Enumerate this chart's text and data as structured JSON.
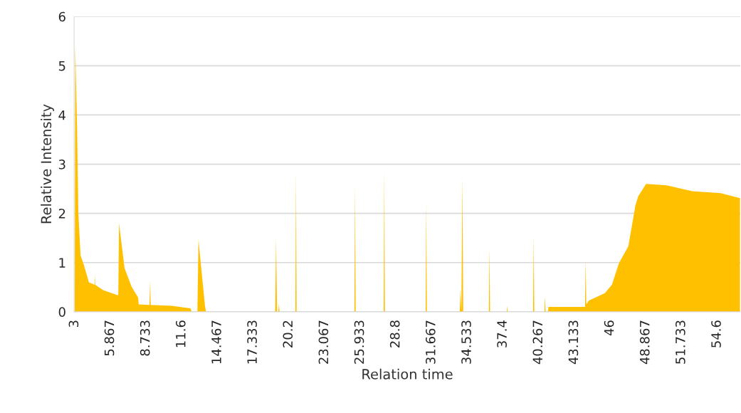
{
  "chart_data": {
    "type": "area",
    "xlabel": "Relation time",
    "ylabel": "Relative Intensity",
    "series": [
      {
        "color": "#ffc000",
        "x": [
          3.0,
          3.04,
          3.19,
          3.29,
          3.47,
          3.74,
          4.14,
          4.6,
          4.62,
          4.65,
          5.29,
          6.43,
          6.5,
          6.56,
          7.0,
          7.57,
          8.09,
          8.14,
          9.0,
          9.06,
          9.1,
          10.83,
          12.3,
          12.4,
          12.85,
          12.94,
          13.0,
          13.46,
          13.55,
          19.1,
          19.17,
          19.25,
          19.35,
          19.4,
          19.45,
          20.72,
          20.77,
          20.82,
          25.46,
          25.51,
          25.56,
          27.81,
          27.86,
          27.91,
          31.18,
          31.23,
          31.28,
          33.92,
          33.97,
          34.05,
          34.14,
          34.2,
          36.26,
          36.31,
          36.36,
          37.7,
          37.74,
          37.78,
          39.81,
          39.86,
          39.91,
          40.72,
          40.77,
          40.82,
          41.0,
          41.05,
          41.5,
          43.98,
          44.03,
          44.08,
          44.3,
          45.57,
          46.14,
          46.71,
          47.46,
          48.03,
          48.26,
          48.89,
          50.54,
          52.6,
          54.89,
          56.43
        ],
        "values": [
          0,
          5.42,
          3.72,
          2.01,
          1.14,
          0.95,
          0.6,
          0.55,
          0.77,
          0.55,
          0.44,
          0.34,
          0.34,
          1.8,
          0.89,
          0.51,
          0.29,
          0.15,
          0.14,
          0.63,
          0.14,
          0.12,
          0.07,
          0,
          0,
          1.47,
          1.3,
          0.12,
          0,
          0,
          1.5,
          0,
          0,
          0.16,
          0,
          0,
          2.85,
          0,
          0,
          2.57,
          0,
          0,
          2.89,
          0,
          0,
          2.23,
          0,
          0,
          0.45,
          0,
          2.74,
          0,
          0,
          1.31,
          0,
          0,
          0.12,
          0,
          0,
          1.55,
          0,
          0,
          0.31,
          0,
          0,
          0.1,
          0.1,
          0.1,
          1.07,
          0.15,
          0.23,
          0.38,
          0.55,
          0.99,
          1.33,
          2.16,
          2.35,
          2.6,
          2.57,
          2.45,
          2.41,
          2.31
        ]
      }
    ],
    "xlim": [
      2.95,
      56.45
    ],
    "xticks": [
      3,
      5.867,
      8.733,
      11.6,
      14.467,
      17.333,
      20.2,
      23.067,
      25.933,
      28.8,
      31.667,
      34.533,
      37.4,
      40.267,
      43.133,
      46,
      48.867,
      51.733,
      54.6
    ],
    "ylim": [
      0,
      6
    ],
    "yticks": [
      0,
      1,
      2,
      3,
      4,
      5,
      6
    ],
    "grid": "y",
    "legend": false
  }
}
